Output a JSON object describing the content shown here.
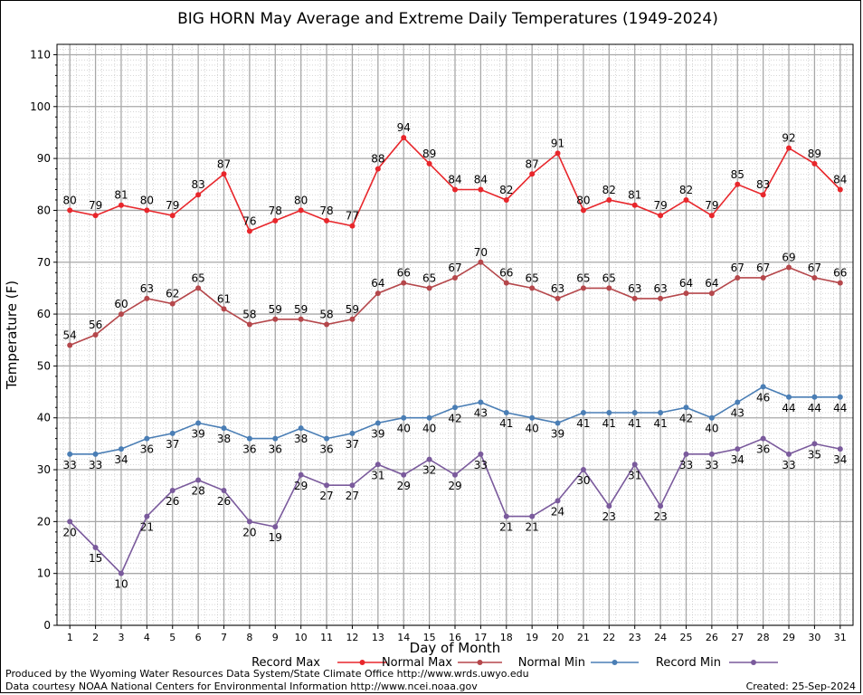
{
  "chart_data": {
    "type": "line",
    "title": "BIG HORN May Average and Extreme Daily Temperatures (1949-2024)",
    "xlabel": "Day of Month",
    "ylabel": "Temperature (F)",
    "ylim": [
      0,
      112
    ],
    "yticks": [
      0,
      10,
      20,
      30,
      40,
      50,
      60,
      70,
      80,
      90,
      100,
      110
    ],
    "x": [
      1,
      2,
      3,
      4,
      5,
      6,
      7,
      8,
      9,
      10,
      11,
      12,
      13,
      14,
      15,
      16,
      17,
      18,
      19,
      20,
      21,
      22,
      23,
      24,
      25,
      26,
      27,
      28,
      29,
      30,
      31
    ],
    "grid": true,
    "legend_position": "bottom",
    "series": [
      {
        "name": "Record Max",
        "color": "#e8262b",
        "label_position": "above",
        "values": [
          80,
          79,
          81,
          80,
          79,
          83,
          87,
          76,
          78,
          80,
          78,
          77,
          88,
          94,
          89,
          84,
          84,
          82,
          87,
          91,
          80,
          82,
          81,
          79,
          82,
          79,
          85,
          83,
          92,
          89,
          84
        ]
      },
      {
        "name": "Normal Max",
        "color": "#b5474b",
        "label_position": "above",
        "values": [
          54,
          56,
          60,
          63,
          62,
          65,
          61,
          58,
          59,
          59,
          58,
          59,
          64,
          66,
          65,
          67,
          70,
          66,
          65,
          63,
          65,
          65,
          63,
          63,
          64,
          64,
          67,
          67,
          69,
          67,
          66
        ]
      },
      {
        "name": "Normal Min",
        "color": "#4a7eb5",
        "label_position": "below",
        "values": [
          33,
          33,
          34,
          36,
          37,
          39,
          38,
          36,
          36,
          38,
          36,
          37,
          39,
          40,
          40,
          42,
          43,
          41,
          40,
          39,
          41,
          41,
          41,
          41,
          42,
          40,
          43,
          46,
          44,
          44,
          44
        ]
      },
      {
        "name": "Record Min",
        "color": "#7a5a9c",
        "label_position": "below",
        "values": [
          20,
          15,
          10,
          21,
          26,
          28,
          26,
          20,
          19,
          29,
          27,
          27,
          31,
          29,
          32,
          29,
          33,
          21,
          21,
          24,
          30,
          23,
          31,
          23,
          33,
          33,
          34,
          36,
          33,
          35,
          34
        ]
      }
    ]
  },
  "credits": {
    "produced_by": "Produced by the Wyoming Water Resources Data System/State Climate Office http://www.wrds.uwyo.edu",
    "data_courtesy": "Data courtesy NOAA National Centers for Environmental Information http://www.ncei.noaa.gov",
    "created": "Created:  25-Sep-2024"
  }
}
